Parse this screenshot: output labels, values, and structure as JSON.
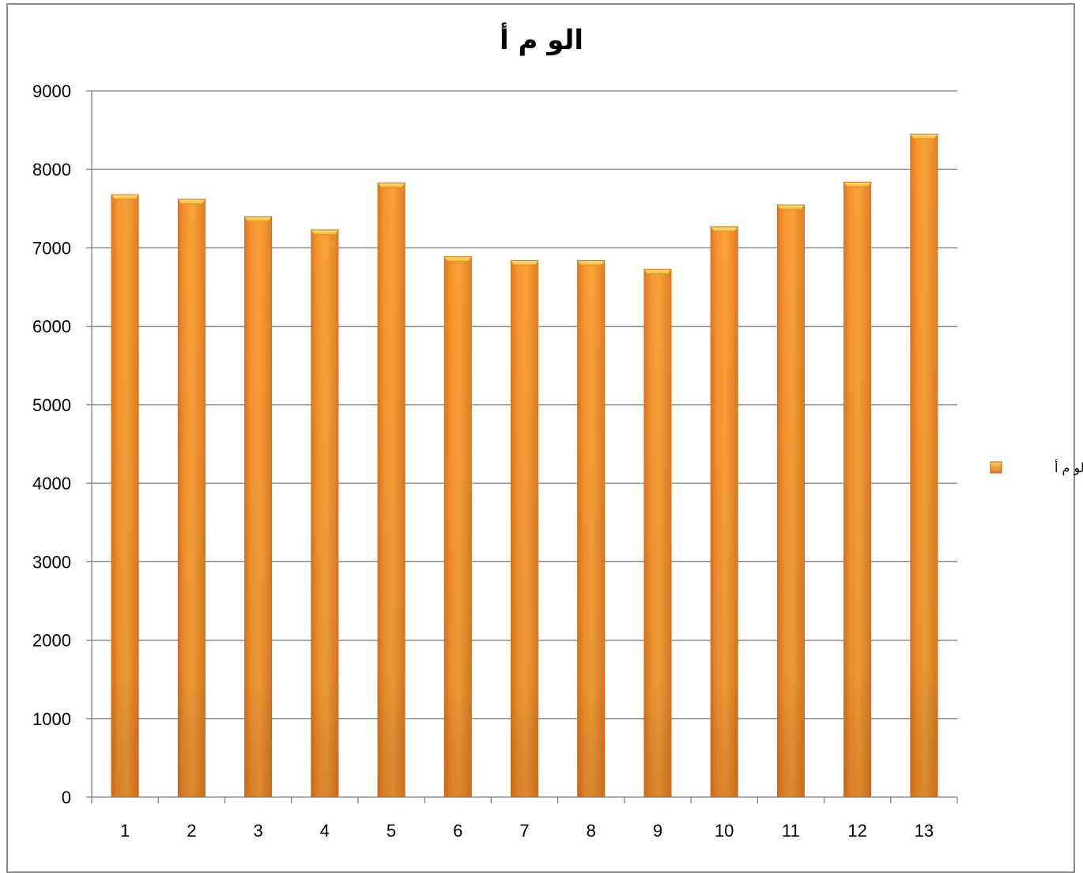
{
  "chart_data": {
    "type": "bar",
    "title": "الو م أ",
    "categories": [
      "1",
      "2",
      "3",
      "4",
      "5",
      "6",
      "7",
      "8",
      "9",
      "10",
      "11",
      "12",
      "13"
    ],
    "series": [
      {
        "name": "الو م أ",
        "values": [
          7680,
          7620,
          7400,
          7230,
          7830,
          6890,
          6840,
          6840,
          6730,
          7270,
          7550,
          7840,
          8450
        ]
      }
    ],
    "ylim": [
      0,
      9000
    ],
    "yticks": [
      0,
      1000,
      2000,
      3000,
      4000,
      5000,
      6000,
      7000,
      8000,
      9000
    ],
    "xlabel": "",
    "ylabel": "",
    "grid": true,
    "legend_position": "right",
    "colors": {
      "bar_light": "#F9A23A",
      "bar_mid": "#F58A23",
      "bar_dark": "#D2691E",
      "bar_cap": "#F6D25A",
      "gridline": "#7f7f7f",
      "axis": "#7f7f7f"
    }
  }
}
